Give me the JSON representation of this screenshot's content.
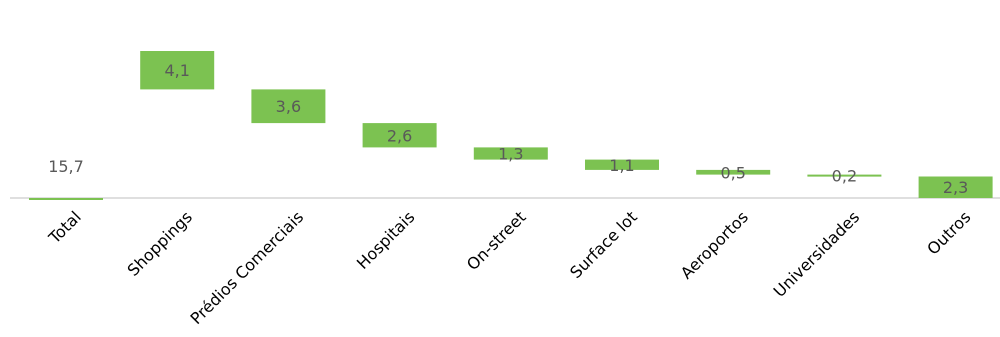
{
  "chart_data": {
    "type": "bar",
    "subtype": "waterfall",
    "categories": [
      "Total",
      "Shoppings",
      "Prédios Comerciais",
      "Hospitais",
      "On-street",
      "Surface lot",
      "Aeroportos",
      "Universidades",
      "Outros"
    ],
    "values": [
      15.7,
      4.1,
      3.6,
      2.6,
      1.3,
      1.1,
      0.5,
      0.2,
      2.3
    ],
    "data_labels": [
      "15,7",
      "4,1",
      "3,6",
      "2,6",
      "1,3",
      "1,1",
      "0,5",
      "0,2",
      "2,3"
    ],
    "title": "",
    "xlabel": "",
    "ylabel": "",
    "ylim": [
      0,
      15.7
    ],
    "grid": false,
    "legend": "none",
    "bar_color": "#7cc251"
  }
}
